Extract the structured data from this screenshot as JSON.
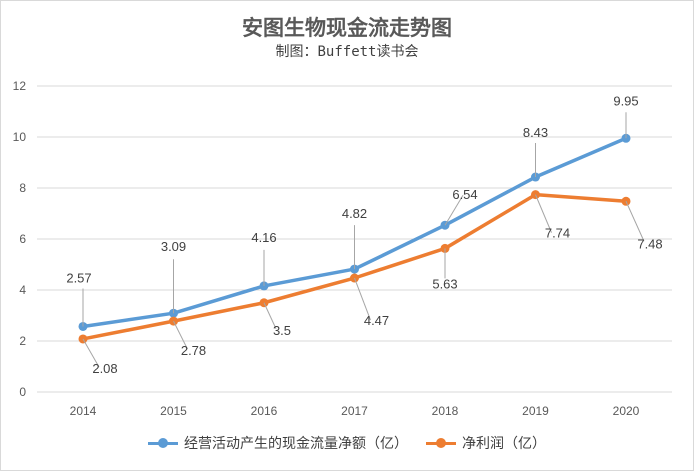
{
  "title": "安图生物现金流走势图",
  "subtitle": "制图：Buffett读书会",
  "colors": {
    "series1": "#5b9bd5",
    "series2": "#ed7d31",
    "grid": "#d9d9d9"
  },
  "chart_data": {
    "type": "line",
    "title": "安图生物现金流走势图",
    "subtitle": "制图：Buffett读书会",
    "xlabel": "",
    "ylabel": "",
    "categories": [
      "2014",
      "2015",
      "2016",
      "2017",
      "2018",
      "2019",
      "2020"
    ],
    "ylim": [
      0,
      12
    ],
    "yticks": [
      0,
      2,
      4,
      6,
      8,
      10,
      12
    ],
    "grid": true,
    "legend_position": "bottom",
    "series": [
      {
        "name": "经营活动产生的现金流量净额（亿）",
        "values": [
          2.57,
          3.09,
          4.16,
          4.82,
          6.54,
          8.43,
          9.95
        ],
        "labels": [
          "2.57",
          "3.09",
          "4.16",
          "4.82",
          "6.54",
          "8.43",
          "9.95"
        ]
      },
      {
        "name": "净利润（亿）",
        "values": [
          2.08,
          2.78,
          3.5,
          4.47,
          5.63,
          7.74,
          7.48
        ],
        "labels": [
          "2.08",
          "2.78",
          "3.5",
          "4.47",
          "5.63",
          "7.74",
          "7.48"
        ]
      }
    ]
  }
}
